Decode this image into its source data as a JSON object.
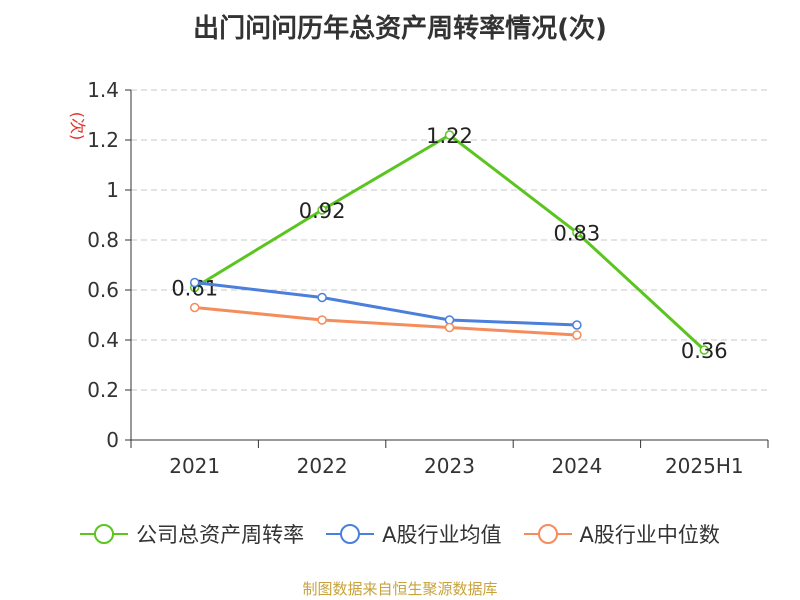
{
  "chart_data": {
    "type": "line",
    "title": "出门问问历年总资产周转率情况(次)",
    "ylabel": "(次)",
    "xlabel": "",
    "categories": [
      "2021",
      "2022",
      "2023",
      "2024",
      "2025H1"
    ],
    "ylim": [
      0,
      1.4
    ],
    "yticks": [
      "0",
      "0.2",
      "0.4",
      "0.6",
      "0.8",
      "1",
      "1.2",
      "1.4"
    ],
    "series": [
      {
        "name": "公司总资产周转率",
        "color": "#5bc520",
        "values": [
          0.61,
          0.92,
          1.22,
          0.83,
          0.36
        ],
        "labels": [
          "0.61",
          "0.92",
          "1.22",
          "0.83",
          "0.36"
        ]
      },
      {
        "name": "A股行业均值",
        "color": "#4a7fdb",
        "values": [
          0.63,
          0.57,
          0.48,
          0.46,
          null
        ]
      },
      {
        "name": "A股行业中位数",
        "color": "#f58c5b",
        "values": [
          0.53,
          0.48,
          0.45,
          0.42,
          null
        ]
      }
    ],
    "grid": true,
    "legend_position": "bottom"
  },
  "source": "制图数据来自恒生聚源数据库"
}
